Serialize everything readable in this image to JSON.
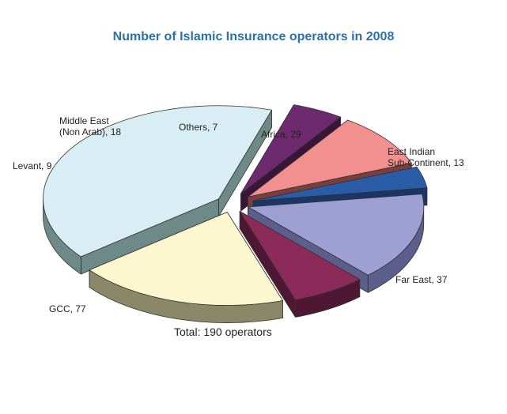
{
  "chart_data": {
    "type": "pie",
    "title": "Number of Islamic Insurance operators in 2008",
    "total_note": "Total: 190 operators",
    "slices": [
      {
        "label": [
          "Africa, 29"
        ],
        "value": 29,
        "color": "#9e9fd3",
        "side": "#5c5e8c"
      },
      {
        "label": [
          "East Indian",
          "Sub-Continent, 13"
        ],
        "value": 13,
        "color": "#8c2a5a",
        "side": "#4e1834"
      },
      {
        "label": [
          "Far East, 37"
        ],
        "value": 37,
        "color": "#fdf7cf",
        "side": "#8a8868"
      },
      {
        "label": [
          "GCC, 77"
        ],
        "value": 77,
        "color": "#d8eef4",
        "side": "#6e8a88"
      },
      {
        "label": [
          "Levant, 9"
        ],
        "value": 9,
        "color": "#6e2a6e",
        "side": "#3a153a"
      },
      {
        "label": [
          "Middle East",
          "(Non Arab), 18"
        ],
        "value": 18,
        "color": "#f29090",
        "side": "#7a3e3e"
      },
      {
        "label": [
          "Others, 7"
        ],
        "value": 7,
        "color": "#2a5ca8",
        "side": "#1a3566"
      }
    ]
  }
}
